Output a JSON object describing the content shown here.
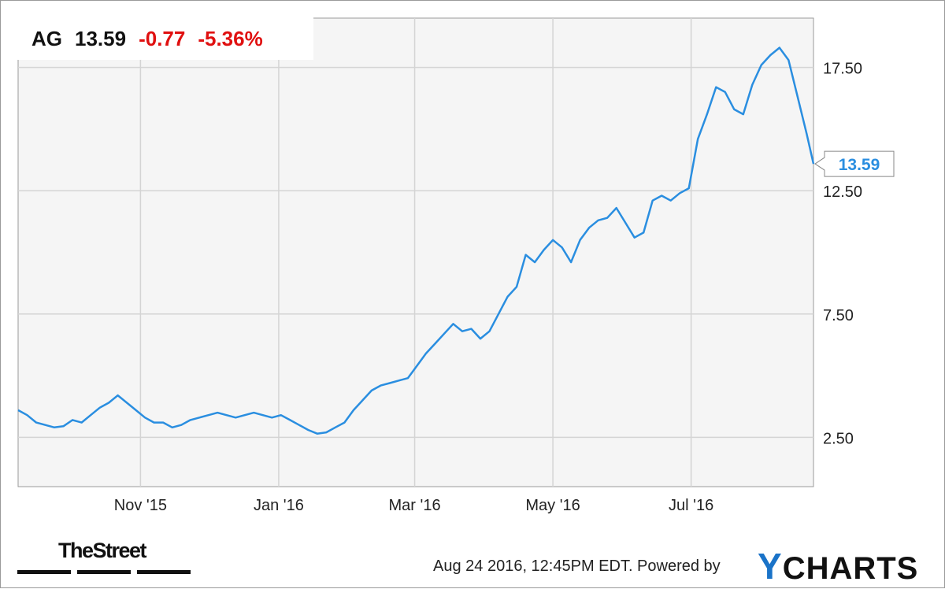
{
  "header": {
    "ticker": "AG",
    "price": "13.59",
    "change": "-0.77",
    "change_pct": "-5.36%",
    "change_color": "#e01010"
  },
  "chart_data": {
    "type": "line",
    "series": [
      {
        "color": "#2a8ee0",
        "points": [
          [
            "2015-09-08",
            3.6
          ],
          [
            "2015-09-12",
            3.4
          ],
          [
            "2015-09-16",
            3.1
          ],
          [
            "2015-09-20",
            3.0
          ],
          [
            "2015-09-24",
            2.9
          ],
          [
            "2015-09-28",
            2.95
          ],
          [
            "2015-10-02",
            3.2
          ],
          [
            "2015-10-06",
            3.1
          ],
          [
            "2015-10-10",
            3.4
          ],
          [
            "2015-10-14",
            3.7
          ],
          [
            "2015-10-18",
            3.9
          ],
          [
            "2015-10-22",
            4.2
          ],
          [
            "2015-10-26",
            3.9
          ],
          [
            "2015-10-30",
            3.6
          ],
          [
            "2015-11-03",
            3.3
          ],
          [
            "2015-11-07",
            3.1
          ],
          [
            "2015-11-11",
            3.1
          ],
          [
            "2015-11-15",
            2.9
          ],
          [
            "2015-11-19",
            3.0
          ],
          [
            "2015-11-23",
            3.2
          ],
          [
            "2015-11-27",
            3.3
          ],
          [
            "2015-12-01",
            3.4
          ],
          [
            "2015-12-05",
            3.5
          ],
          [
            "2015-12-09",
            3.4
          ],
          [
            "2015-12-13",
            3.3
          ],
          [
            "2015-12-17",
            3.4
          ],
          [
            "2015-12-21",
            3.5
          ],
          [
            "2015-12-25",
            3.4
          ],
          [
            "2015-12-29",
            3.3
          ],
          [
            "2016-01-02",
            3.4
          ],
          [
            "2016-01-06",
            3.2
          ],
          [
            "2016-01-10",
            3.0
          ],
          [
            "2016-01-14",
            2.8
          ],
          [
            "2016-01-18",
            2.65
          ],
          [
            "2016-01-22",
            2.7
          ],
          [
            "2016-01-26",
            2.9
          ],
          [
            "2016-01-30",
            3.1
          ],
          [
            "2016-02-03",
            3.6
          ],
          [
            "2016-02-07",
            4.0
          ],
          [
            "2016-02-11",
            4.4
          ],
          [
            "2016-02-15",
            4.6
          ],
          [
            "2016-02-19",
            4.7
          ],
          [
            "2016-02-23",
            4.8
          ],
          [
            "2016-02-27",
            4.9
          ],
          [
            "2016-03-02",
            5.4
          ],
          [
            "2016-03-06",
            5.9
          ],
          [
            "2016-03-10",
            6.3
          ],
          [
            "2016-03-14",
            6.7
          ],
          [
            "2016-03-18",
            7.1
          ],
          [
            "2016-03-22",
            6.8
          ],
          [
            "2016-03-26",
            6.9
          ],
          [
            "2016-03-30",
            6.5
          ],
          [
            "2016-04-03",
            6.8
          ],
          [
            "2016-04-07",
            7.5
          ],
          [
            "2016-04-11",
            8.2
          ],
          [
            "2016-04-15",
            8.6
          ],
          [
            "2016-04-19",
            9.9
          ],
          [
            "2016-04-23",
            9.6
          ],
          [
            "2016-04-27",
            10.1
          ],
          [
            "2016-05-01",
            10.5
          ],
          [
            "2016-05-05",
            10.2
          ],
          [
            "2016-05-09",
            9.6
          ],
          [
            "2016-05-13",
            10.5
          ],
          [
            "2016-05-17",
            11.0
          ],
          [
            "2016-05-21",
            11.3
          ],
          [
            "2016-05-25",
            11.4
          ],
          [
            "2016-05-29",
            11.8
          ],
          [
            "2016-06-02",
            11.2
          ],
          [
            "2016-06-06",
            10.6
          ],
          [
            "2016-06-10",
            10.8
          ],
          [
            "2016-06-14",
            12.1
          ],
          [
            "2016-06-18",
            12.3
          ],
          [
            "2016-06-22",
            12.1
          ],
          [
            "2016-06-26",
            12.4
          ],
          [
            "2016-06-30",
            12.6
          ],
          [
            "2016-07-04",
            14.6
          ],
          [
            "2016-07-08",
            15.6
          ],
          [
            "2016-07-12",
            16.7
          ],
          [
            "2016-07-16",
            16.5
          ],
          [
            "2016-07-20",
            15.8
          ],
          [
            "2016-07-24",
            15.6
          ],
          [
            "2016-07-28",
            16.8
          ],
          [
            "2016-08-01",
            17.6
          ],
          [
            "2016-08-05",
            18.0
          ],
          [
            "2016-08-09",
            18.3
          ],
          [
            "2016-08-13",
            17.8
          ],
          [
            "2016-08-17",
            16.3
          ],
          [
            "2016-08-21",
            14.8
          ],
          [
            "2016-08-24",
            13.59
          ]
        ]
      }
    ],
    "x_ticks": [
      {
        "date": "2015-11-01",
        "label": "Nov '15"
      },
      {
        "date": "2016-01-01",
        "label": "Jan '16"
      },
      {
        "date": "2016-03-01",
        "label": "Mar '16"
      },
      {
        "date": "2016-05-01",
        "label": "May '16"
      },
      {
        "date": "2016-07-01",
        "label": "Jul '16"
      }
    ],
    "y_ticks": [
      {
        "value": 2.5,
        "label": "2.50"
      },
      {
        "value": 7.5,
        "label": "7.50"
      },
      {
        "value": 12.5,
        "label": "12.50"
      },
      {
        "value": 17.5,
        "label": "17.50"
      }
    ],
    "xlim": [
      "2015-09-08",
      "2016-08-24"
    ],
    "ylim": [
      0.5,
      19.5
    ],
    "last_value_label": "13.59",
    "grid": true,
    "y_axis_side": "right"
  },
  "footer": {
    "brand_left": "TheStreet",
    "timestamp": "Aug 24 2016, 12:45PM EDT.  Powered by",
    "brand_right_y": "Y",
    "brand_right_rest": "CHARTS"
  }
}
